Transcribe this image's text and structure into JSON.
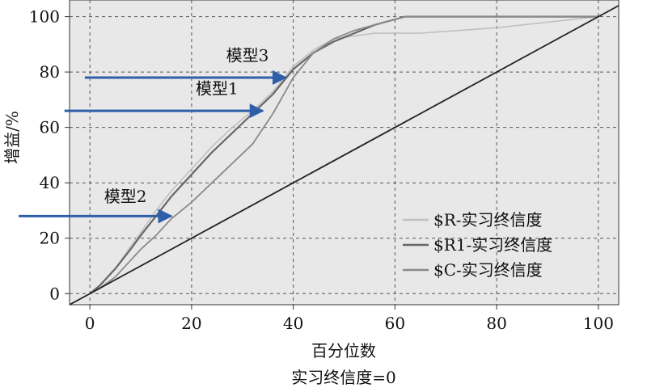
{
  "chart_data": {
    "type": "line",
    "title": "",
    "xlabel": "百分位数",
    "ylabel": "增益/%",
    "subtitle": "实习终信度=0",
    "xlim": [
      -4,
      104
    ],
    "ylim": [
      -4,
      106
    ],
    "xticks": [
      0,
      20,
      40,
      60,
      80,
      100
    ],
    "yticks": [
      0,
      20,
      40,
      60,
      80,
      100
    ],
    "grid": true,
    "legend_position": "bottom-right",
    "background_color": "#e8e8e8",
    "arrow_color": "#2f5fa8",
    "series": [
      {
        "name": "$R-实习终信度",
        "color": "#c0c0c0",
        "x": [
          0,
          2,
          5,
          8,
          10,
          13,
          16,
          20,
          24,
          28,
          32,
          36,
          40,
          44,
          48,
          52,
          56,
          60,
          65,
          80,
          100
        ],
        "y": [
          0,
          3,
          9,
          17,
          22,
          30,
          37,
          45,
          53,
          60,
          66,
          73,
          82,
          88,
          92,
          93,
          94,
          94,
          94,
          96,
          100
        ]
      },
      {
        "name": "$R1-实习终信度",
        "color": "#666666",
        "x": [
          0,
          2,
          5,
          8,
          10,
          13,
          16,
          20,
          24,
          28,
          32,
          36,
          40,
          44,
          48,
          52,
          56,
          60,
          62,
          80,
          100
        ],
        "y": [
          0,
          3,
          9,
          16,
          21,
          28,
          35,
          43,
          51,
          58,
          65,
          72,
          81,
          87,
          91,
          94,
          97,
          99,
          100,
          100,
          100
        ]
      },
      {
        "name": "$C-实习终信度",
        "color": "#8a8a8a",
        "x": [
          0,
          2,
          5,
          8,
          10,
          13,
          16,
          20,
          24,
          28,
          32,
          36,
          40,
          44,
          48,
          52,
          56,
          60,
          62,
          80,
          100
        ],
        "y": [
          0,
          2,
          6,
          12,
          16,
          21,
          27,
          33,
          40,
          47,
          54,
          65,
          78,
          87,
          92,
          95,
          97,
          99,
          100,
          100,
          100
        ]
      },
      {
        "name": "",
        "color": "#222222",
        "x": [
          -4,
          104
        ],
        "y": [
          -4,
          104
        ]
      }
    ],
    "annotations": [
      {
        "label": "模型3",
        "text_x": 31,
        "text_y": 84,
        "arrow_from": [
          -1,
          78
        ],
        "arrow_to": [
          38.5,
          78
        ]
      },
      {
        "label": "模型1",
        "text_x": 25,
        "text_y": 72,
        "arrow_from": [
          -5,
          66
        ],
        "arrow_to": [
          34,
          66
        ]
      },
      {
        "label": "模型2",
        "text_x": 7,
        "text_y": 33,
        "arrow_from": [
          -14,
          28
        ],
        "arrow_to": [
          16,
          28
        ]
      }
    ]
  }
}
